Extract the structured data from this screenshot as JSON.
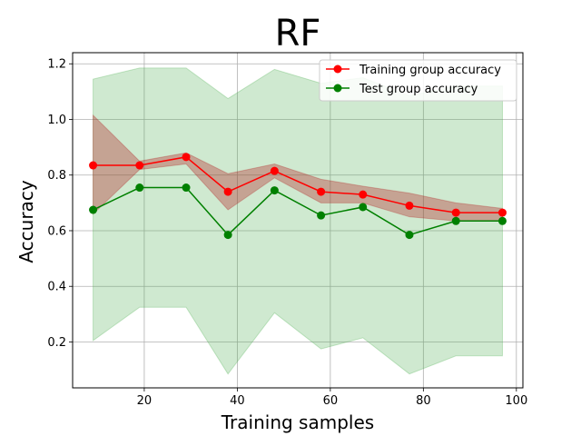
{
  "chart_data": {
    "type": "line",
    "title": "RF",
    "xlabel": "Training samples",
    "ylabel": "Accuracy",
    "xlim": [
      4.6,
      101.4
    ],
    "ylim": [
      0.035,
      1.24
    ],
    "xticks": [
      20,
      40,
      60,
      80,
      100
    ],
    "yticks": [
      0.2,
      0.4,
      0.6,
      0.8,
      1.0,
      1.2
    ],
    "grid": true,
    "legend_position": "top-right",
    "x": [
      9,
      19,
      29,
      38,
      48,
      58,
      67,
      77,
      87,
      97
    ],
    "series": [
      {
        "name": "Training group accuracy",
        "color": "#ff0000",
        "band_color": "#b22222",
        "values": [
          0.835,
          0.835,
          0.865,
          0.74,
          0.815,
          0.74,
          0.73,
          0.69,
          0.665,
          0.665
        ],
        "lower": [
          0.66,
          0.82,
          0.84,
          0.675,
          0.79,
          0.7,
          0.7,
          0.65,
          0.635,
          0.635
        ],
        "upper": [
          1.015,
          0.85,
          0.88,
          0.805,
          0.84,
          0.785,
          0.76,
          0.735,
          0.7,
          0.68
        ]
      },
      {
        "name": "Test group accuracy",
        "color": "#008000",
        "band_color": "#4caf50",
        "values": [
          0.675,
          0.755,
          0.755,
          0.585,
          0.745,
          0.655,
          0.685,
          0.585,
          0.635,
          0.635
        ],
        "lower": [
          0.205,
          0.325,
          0.325,
          0.085,
          0.305,
          0.175,
          0.215,
          0.085,
          0.15,
          0.15
        ],
        "upper": [
          1.145,
          1.185,
          1.185,
          1.075,
          1.18,
          1.13,
          1.15,
          1.085,
          1.12,
          1.12
        ]
      }
    ]
  }
}
